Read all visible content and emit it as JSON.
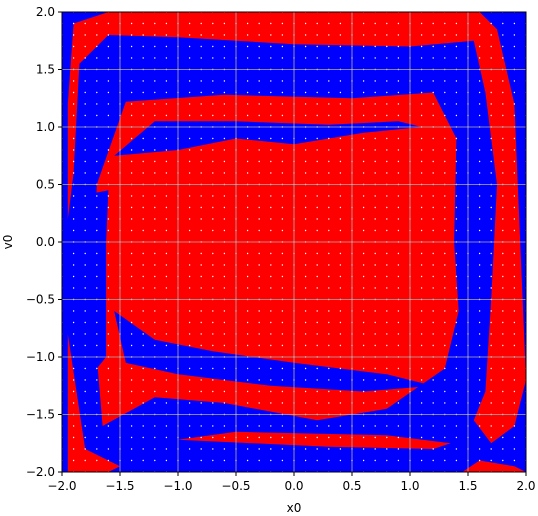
{
  "chart_data": {
    "type": "scatter",
    "title": "",
    "xlabel": "x0",
    "ylabel": "v0",
    "xlim": [
      -2.0,
      2.0
    ],
    "ylim": [
      -2.0,
      2.0
    ],
    "grid": true,
    "x_ticks": [
      "−2.0",
      "−1.5",
      "−1.0",
      "−0.5",
      "0.0",
      "0.5",
      "1.0",
      "1.5",
      "2.0"
    ],
    "y_ticks": [
      "2.0",
      "1.5",
      "1.0",
      "0.5",
      "0.0",
      "−0.5",
      "−1.0",
      "−1.5",
      "−2.0"
    ],
    "x_tick_values": [
      -2.0,
      -1.5,
      -1.0,
      -0.5,
      0.0,
      0.5,
      1.0,
      1.5,
      2.0
    ],
    "y_tick_values": [
      2.0,
      1.5,
      1.0,
      0.5,
      0.0,
      -0.5,
      -1.0,
      -1.5,
      -2.0
    ],
    "grid_points": {
      "x_range": [
        -2.0,
        2.0
      ],
      "y_range": [
        -2.0,
        2.0
      ],
      "step": 0.1
    },
    "colors": {
      "class_a": "#0000ff",
      "class_b": "#ff0000",
      "sample_dot": "#ffffff",
      "grid": "#b0b0b0"
    },
    "series": [
      {
        "color": "#0000ff",
        "polygons": [
          [
            [
              -1.9,
              -2.0
            ],
            [
              -1.9,
              1.95
            ],
            [
              -1.45,
              1.9
            ],
            [
              -0.5,
              1.8
            ],
            [
              0.6,
              1.75
            ],
            [
              1.4,
              1.65
            ],
            [
              1.55,
              1.2
            ],
            [
              1.45,
              0.3
            ],
            [
              1.55,
              -0.5
            ],
            [
              1.45,
              -1.2
            ],
            [
              1.0,
              -1.6
            ],
            [
              0.2,
              -1.6
            ],
            [
              -0.8,
              -1.55
            ],
            [
              -1.35,
              -1.6
            ],
            [
              -1.6,
              -1.9
            ],
            [
              -1.9,
              -2.0
            ]
          ],
          [
            [
              1.65,
              2.0
            ],
            [
              1.8,
              1.75
            ],
            [
              1.95,
              1.3
            ],
            [
              2.0,
              0.5
            ],
            [
              2.0,
              -0.4
            ],
            [
              1.95,
              -1.5
            ],
            [
              1.9,
              -1.9
            ],
            [
              1.75,
              -1.65
            ],
            [
              1.8,
              -1.0
            ],
            [
              1.8,
              0.5
            ],
            [
              1.75,
              1.5
            ],
            [
              1.65,
              2.0
            ]
          ],
          [
            [
              -1.5,
              -2.0
            ],
            [
              -0.8,
              -1.92
            ],
            [
              0.3,
              -1.85
            ],
            [
              1.0,
              -1.85
            ],
            [
              1.35,
              -1.9
            ],
            [
              1.5,
              -2.0
            ],
            [
              -1.5,
              -2.0
            ]
          ],
          [
            [
              0.0,
              0.62
            ],
            [
              0.6,
              0.9
            ],
            [
              1.2,
              0.9
            ],
            [
              1.45,
              0.6
            ],
            [
              1.5,
              -0.2
            ],
            [
              1.4,
              -0.8
            ],
            [
              1.0,
              -1.05
            ],
            [
              0.5,
              -0.7
            ],
            [
              0.1,
              -0.1
            ],
            [
              0.0,
              0.62
            ]
          ],
          [
            [
              -1.45,
              1.3
            ],
            [
              -0.9,
              1.6
            ],
            [
              0.2,
              1.6
            ],
            [
              1.0,
              1.48
            ],
            [
              1.15,
              1.35
            ],
            [
              0.5,
              1.35
            ],
            [
              -0.5,
              1.42
            ],
            [
              -1.1,
              1.35
            ],
            [
              -1.45,
              1.3
            ]
          ]
        ]
      },
      {
        "color": "#ff0000",
        "polygons": [
          [
            [
              -1.7,
              0.5
            ],
            [
              -1.45,
              1.22
            ],
            [
              -0.6,
              1.28
            ],
            [
              0.5,
              1.25
            ],
            [
              1.2,
              1.3
            ],
            [
              1.4,
              0.9
            ],
            [
              1.38,
              0.0
            ],
            [
              1.42,
              -0.6
            ],
            [
              1.3,
              -1.1
            ],
            [
              0.8,
              -1.45
            ],
            [
              0.2,
              -1.55
            ],
            [
              -0.6,
              -1.4
            ],
            [
              -1.2,
              -1.35
            ],
            [
              -1.65,
              -1.6
            ],
            [
              -1.7,
              -1.0
            ],
            [
              -1.72,
              0.0
            ],
            [
              -1.7,
              0.5
            ]
          ],
          [
            [
              -1.9,
              0.6
            ],
            [
              -1.85,
              1.55
            ],
            [
              -1.6,
              1.8
            ],
            [
              -1.0,
              1.78
            ],
            [
              0.0,
              1.72
            ],
            [
              1.0,
              1.7
            ],
            [
              1.55,
              1.75
            ],
            [
              1.65,
              1.3
            ],
            [
              1.75,
              0.5
            ],
            [
              1.7,
              -0.5
            ],
            [
              1.65,
              -1.3
            ],
            [
              1.55,
              -1.55
            ],
            [
              1.7,
              -1.75
            ],
            [
              1.9,
              -1.6
            ],
            [
              2.0,
              -1.2
            ],
            [
              1.95,
              0.0
            ],
            [
              1.9,
              1.2
            ],
            [
              1.75,
              1.85
            ],
            [
              1.6,
              2.0
            ],
            [
              -1.6,
              2.0
            ],
            [
              -1.9,
              1.9
            ],
            [
              -1.95,
              1.2
            ],
            [
              -1.95,
              0.2
            ],
            [
              -1.9,
              0.6
            ]
          ],
          [
            [
              -1.95,
              -2.0
            ],
            [
              -1.95,
              -0.8
            ],
            [
              -1.8,
              -1.8
            ],
            [
              -1.5,
              -1.95
            ],
            [
              -1.6,
              -2.0
            ],
            [
              -1.95,
              -2.0
            ]
          ],
          [
            [
              1.45,
              -2.0
            ],
            [
              1.6,
              -1.9
            ],
            [
              1.9,
              -1.95
            ],
            [
              2.0,
              -2.0
            ],
            [
              1.45,
              -2.0
            ]
          ],
          [
            [
              -1.0,
              -1.72
            ],
            [
              0.3,
              -1.78
            ],
            [
              1.2,
              -1.8
            ],
            [
              1.35,
              -1.75
            ],
            [
              0.8,
              -1.68
            ],
            [
              -0.5,
              -1.65
            ],
            [
              -1.0,
              -1.72
            ]
          ]
        ]
      },
      {
        "color": "#0000ff",
        "polygons": [
          [
            [
              -1.55,
              0.75
            ],
            [
              -1.2,
              1.05
            ],
            [
              -0.5,
              1.05
            ],
            [
              0.3,
              1.02
            ],
            [
              0.9,
              1.05
            ],
            [
              1.1,
              1.0
            ],
            [
              0.6,
              0.95
            ],
            [
              0.0,
              0.85
            ],
            [
              -0.5,
              0.9
            ],
            [
              -1.0,
              0.8
            ],
            [
              -1.55,
              0.75
            ]
          ],
          [
            [
              -1.55,
              -0.6
            ],
            [
              -1.45,
              -1.05
            ],
            [
              -1.0,
              -1.15
            ],
            [
              -0.2,
              -1.25
            ],
            [
              0.6,
              -1.3
            ],
            [
              1.2,
              -1.25
            ],
            [
              0.8,
              -1.15
            ],
            [
              0.0,
              -1.05
            ],
            [
              -0.7,
              -0.95
            ],
            [
              -1.2,
              -0.85
            ],
            [
              -1.55,
              -0.6
            ]
          ],
          [
            [
              -1.85,
              0.4
            ],
            [
              -1.75,
              -0.2
            ],
            [
              -1.7,
              -1.1
            ],
            [
              -1.62,
              -1.0
            ],
            [
              -1.62,
              0.0
            ],
            [
              -1.6,
              0.45
            ],
            [
              -1.85,
              0.4
            ]
          ]
        ]
      }
    ]
  }
}
